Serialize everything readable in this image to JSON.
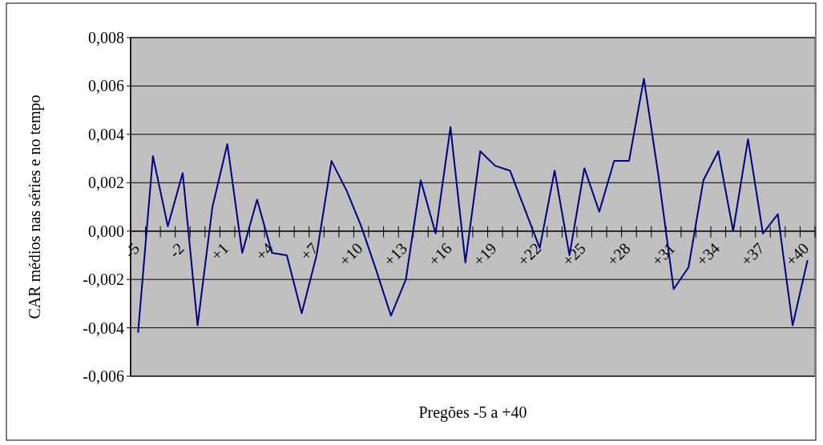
{
  "chart_data": {
    "type": "line",
    "xlabel": "Pregões -5 a +40",
    "ylabel": "CAR médios nas séries e no tempo",
    "categories": [
      "-5",
      null,
      null,
      "-2",
      null,
      null,
      "+1",
      null,
      null,
      "+4",
      null,
      null,
      "+7",
      null,
      null,
      "+10",
      null,
      null,
      "+13",
      null,
      null,
      "+16",
      null,
      null,
      "+19",
      null,
      null,
      "+22",
      null,
      null,
      "+25",
      null,
      null,
      "+28",
      null,
      null,
      "+31",
      null,
      null,
      "+34",
      null,
      null,
      "+37",
      null,
      null,
      "+40"
    ],
    "series": [
      {
        "color": "#000080",
        "values": [
          -0.0042,
          0.0031,
          0.0002,
          0.0024,
          -0.0039,
          0.001,
          0.0036,
          -0.0009,
          0.0013,
          -0.0009,
          -0.001,
          -0.0034,
          -0.001,
          0.0029,
          0.0017,
          0.0002,
          -0.0016,
          -0.0035,
          -0.002,
          0.0021,
          -0.0001,
          0.0043,
          -0.0013,
          0.0033,
          0.0027,
          0.0025,
          0.0009,
          -0.0007,
          0.0025,
          -0.001,
          0.0026,
          0.0008,
          0.0029,
          0.0029,
          0.0063,
          0.0022,
          -0.0024,
          -0.0015,
          0.0021,
          0.0033,
          0.0,
          0.0038,
          -0.0001,
          0.0007,
          -0.0039,
          -0.0012
        ]
      }
    ],
    "ylim": [
      -0.006,
      0.008
    ],
    "yticks": [
      {
        "value": -0.006,
        "label": "-0,006"
      },
      {
        "value": -0.004,
        "label": "-0,004"
      },
      {
        "value": -0.002,
        "label": "-0,002"
      },
      {
        "value": 0,
        "label": "0,000"
      },
      {
        "value": 0.002,
        "label": "0,002"
      },
      {
        "value": 0.004,
        "label": "0,004"
      },
      {
        "value": 0.006,
        "label": "0,006"
      },
      {
        "value": 0.008,
        "label": "0,008"
      }
    ],
    "grid": "y",
    "marker": "none",
    "line_style": "solid"
  }
}
